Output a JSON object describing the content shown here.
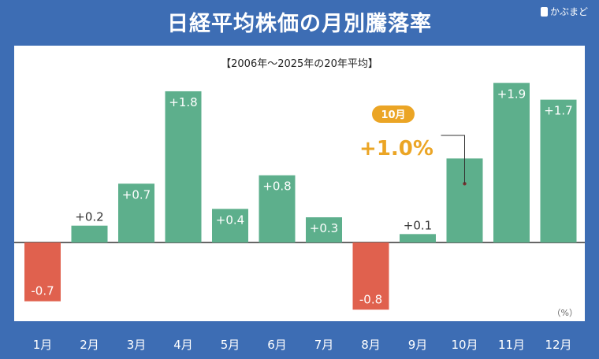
{
  "header": {
    "title": "日経平均株価の月別騰落率",
    "brand": "かぶまど"
  },
  "chart_data": {
    "type": "bar",
    "title": "日経平均株価の月別騰落率",
    "subtitle": "【2006年〜2025年の20年平均】",
    "unit_label": "（%）",
    "categories": [
      "1月",
      "2月",
      "3月",
      "4月",
      "5月",
      "6月",
      "7月",
      "8月",
      "9月",
      "10月",
      "11月",
      "12月"
    ],
    "values": [
      -0.7,
      0.2,
      0.7,
      1.8,
      0.4,
      0.8,
      0.3,
      -0.8,
      0.1,
      1.0,
      1.9,
      1.7
    ],
    "value_labels": [
      "-0.7",
      "+0.2",
      "+0.7",
      "+1.8",
      "+0.4",
      "+0.8",
      "+0.3",
      "-0.8",
      "+0.1",
      "+1.0",
      "+1.9",
      "+1.7"
    ],
    "highlight": {
      "category": "10月",
      "badge": "10月",
      "value_label": "+1.0%"
    },
    "colors": {
      "positive": "#5daf8c",
      "negative": "#e0614e",
      "highlight": "#eba525",
      "background": "#3d6db4"
    }
  }
}
